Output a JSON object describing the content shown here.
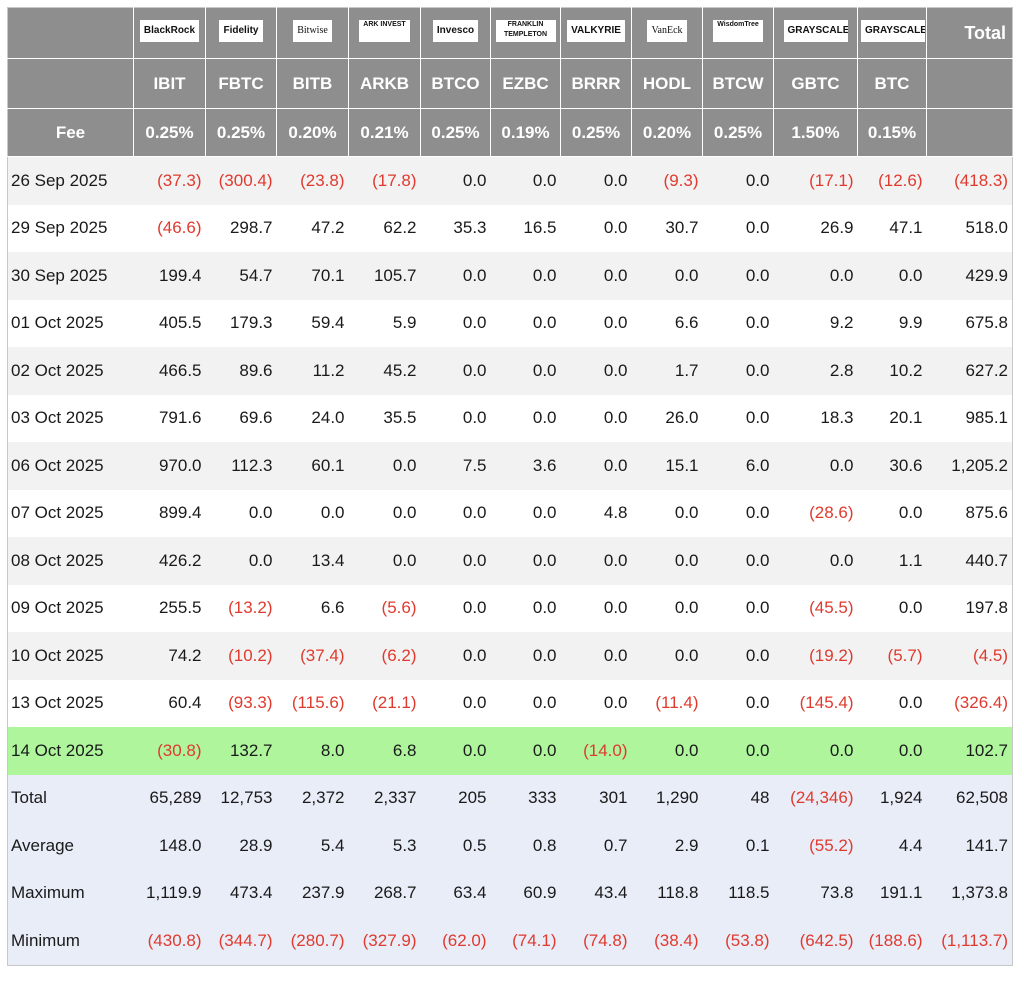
{
  "header": {
    "logos": [
      "BlackRock",
      "Fidelity",
      "Bitwise",
      "ARK INVEST",
      "Invesco",
      "FRANKLIN TEMPLETON",
      "VALKYRIE",
      "VanEck",
      "WisdomTree",
      "GRAYSCALE",
      "GRAYSCALE"
    ],
    "total_label": "Total",
    "tickers": [
      "IBIT",
      "FBTC",
      "BITB",
      "ARKB",
      "BTCO",
      "EZBC",
      "BRRR",
      "HODL",
      "BTCW",
      "GBTC",
      "BTC"
    ],
    "fee_label": "Fee",
    "fees": [
      "0.25%",
      "0.25%",
      "0.20%",
      "0.21%",
      "0.25%",
      "0.19%",
      "0.25%",
      "0.20%",
      "0.25%",
      "1.50%",
      "0.15%"
    ]
  },
  "rows": [
    {
      "label": "26 Sep 2025",
      "values": [
        "(37.3)",
        "(300.4)",
        "(23.8)",
        "(17.8)",
        "0.0",
        "0.0",
        "0.0",
        "(9.3)",
        "0.0",
        "(17.1)",
        "(12.6)",
        "(418.3)"
      ]
    },
    {
      "label": "29 Sep 2025",
      "values": [
        "(46.6)",
        "298.7",
        "47.2",
        "62.2",
        "35.3",
        "16.5",
        "0.0",
        "30.7",
        "0.0",
        "26.9",
        "47.1",
        "518.0"
      ]
    },
    {
      "label": "30 Sep 2025",
      "values": [
        "199.4",
        "54.7",
        "70.1",
        "105.7",
        "0.0",
        "0.0",
        "0.0",
        "0.0",
        "0.0",
        "0.0",
        "0.0",
        "429.9"
      ]
    },
    {
      "label": "01 Oct 2025",
      "values": [
        "405.5",
        "179.3",
        "59.4",
        "5.9",
        "0.0",
        "0.0",
        "0.0",
        "6.6",
        "0.0",
        "9.2",
        "9.9",
        "675.8"
      ]
    },
    {
      "label": "02 Oct 2025",
      "values": [
        "466.5",
        "89.6",
        "11.2",
        "45.2",
        "0.0",
        "0.0",
        "0.0",
        "1.7",
        "0.0",
        "2.8",
        "10.2",
        "627.2"
      ]
    },
    {
      "label": "03 Oct 2025",
      "values": [
        "791.6",
        "69.6",
        "24.0",
        "35.5",
        "0.0",
        "0.0",
        "0.0",
        "26.0",
        "0.0",
        "18.3",
        "20.1",
        "985.1"
      ]
    },
    {
      "label": "06 Oct 2025",
      "values": [
        "970.0",
        "112.3",
        "60.1",
        "0.0",
        "7.5",
        "3.6",
        "0.0",
        "15.1",
        "6.0",
        "0.0",
        "30.6",
        "1,205.2"
      ]
    },
    {
      "label": "07 Oct 2025",
      "values": [
        "899.4",
        "0.0",
        "0.0",
        "0.0",
        "0.0",
        "0.0",
        "4.8",
        "0.0",
        "0.0",
        "(28.6)",
        "0.0",
        "875.6"
      ]
    },
    {
      "label": "08 Oct 2025",
      "values": [
        "426.2",
        "0.0",
        "13.4",
        "0.0",
        "0.0",
        "0.0",
        "0.0",
        "0.0",
        "0.0",
        "0.0",
        "1.1",
        "440.7"
      ]
    },
    {
      "label": "09 Oct 2025",
      "values": [
        "255.5",
        "(13.2)",
        "6.6",
        "(5.6)",
        "0.0",
        "0.0",
        "0.0",
        "0.0",
        "0.0",
        "(45.5)",
        "0.0",
        "197.8"
      ]
    },
    {
      "label": "10 Oct 2025",
      "values": [
        "74.2",
        "(10.2)",
        "(37.4)",
        "(6.2)",
        "0.0",
        "0.0",
        "0.0",
        "0.0",
        "0.0",
        "(19.2)",
        "(5.7)",
        "(4.5)"
      ]
    },
    {
      "label": "13 Oct 2025",
      "values": [
        "60.4",
        "(93.3)",
        "(115.6)",
        "(21.1)",
        "0.0",
        "0.0",
        "0.0",
        "(11.4)",
        "0.0",
        "(145.4)",
        "0.0",
        "(326.4)"
      ]
    },
    {
      "label": "14 Oct 2025",
      "values": [
        "(30.8)",
        "132.7",
        "8.0",
        "6.8",
        "0.0",
        "0.0",
        "(14.0)",
        "0.0",
        "0.0",
        "0.0",
        "0.0",
        "102.7"
      ]
    }
  ],
  "summary": [
    {
      "label": "Total",
      "values": [
        "65,289",
        "12,753",
        "2,372",
        "2,337",
        "205",
        "333",
        "301",
        "1,290",
        "48",
        "(24,346)",
        "1,924",
        "62,508"
      ]
    },
    {
      "label": "Average",
      "values": [
        "148.0",
        "28.9",
        "5.4",
        "5.3",
        "0.5",
        "0.8",
        "0.7",
        "2.9",
        "0.1",
        "(55.2)",
        "4.4",
        "141.7"
      ]
    },
    {
      "label": "Maximum",
      "values": [
        "1,119.9",
        "473.4",
        "237.9",
        "268.7",
        "63.4",
        "60.9",
        "43.4",
        "118.8",
        "118.5",
        "73.8",
        "191.1",
        "1,373.8"
      ]
    },
    {
      "label": "Minimum",
      "values": [
        "(430.8)",
        "(344.7)",
        "(280.7)",
        "(327.9)",
        "(62.0)",
        "(74.1)",
        "(74.8)",
        "(38.4)",
        "(53.8)",
        "(642.5)",
        "(188.6)",
        "(1,113.7)"
      ]
    }
  ]
}
